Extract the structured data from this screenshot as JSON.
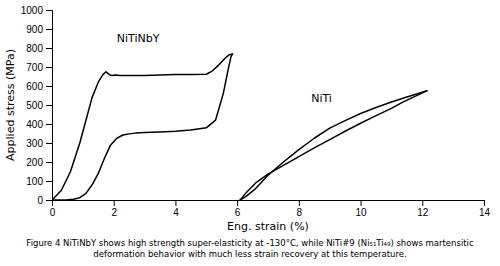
{
  "chart_data": {
    "type": "line",
    "xlabel": "Eng. strain (%)",
    "ylabel": "Applied stress (MPa)",
    "xlim": [
      0,
      14
    ],
    "ylim": [
      0,
      1000
    ],
    "xticks": [
      0,
      2,
      4,
      6,
      8,
      10,
      12,
      14
    ],
    "yticks": [
      0,
      100,
      200,
      300,
      400,
      500,
      600,
      700,
      800,
      900,
      1000
    ],
    "series": [
      {
        "color": "#000000",
        "x": [
          0,
          0.3,
          0.6,
          0.9,
          1.1,
          1.3,
          1.5,
          1.65,
          1.75,
          1.82,
          1.88,
          1.95,
          2.05,
          2.2,
          2.5,
          3.0,
          3.5,
          4.0,
          4.5,
          5.0,
          5.2,
          5.4,
          5.6,
          5.75,
          5.85
        ],
        "values": [
          0,
          50,
          150,
          300,
          420,
          540,
          620,
          660,
          675,
          665,
          658,
          655,
          658,
          655,
          655,
          655,
          658,
          660,
          660,
          662,
          680,
          710,
          745,
          765,
          768
        ]
      },
      {
        "color": "#000000",
        "x": [
          5.85,
          5.8,
          5.7,
          5.55,
          5.3,
          5.0,
          4.5,
          4.0,
          3.5,
          3.0,
          2.7,
          2.5,
          2.3,
          2.1,
          1.9,
          1.7,
          1.5,
          1.3,
          1.1,
          0.9,
          0.7,
          0.5,
          0.3,
          0.15,
          0.05,
          0.0
        ],
        "values": [
          768,
          755,
          680,
          560,
          420,
          380,
          368,
          362,
          358,
          355,
          352,
          348,
          342,
          325,
          290,
          220,
          140,
          80,
          35,
          12,
          4,
          1,
          0,
          0,
          0,
          0
        ]
      },
      {
        "color": "#000000",
        "x": [
          6.1,
          6.3,
          6.6,
          7.0,
          7.5,
          8.0,
          8.5,
          9.0,
          9.5,
          10.0,
          10.5,
          11.0,
          11.5,
          11.9,
          12.15
        ],
        "values": [
          0,
          20,
          60,
          130,
          200,
          265,
          325,
          378,
          418,
          455,
          487,
          516,
          542,
          562,
          575
        ]
      },
      {
        "color": "#000000",
        "x": [
          12.15,
          12.05,
          11.8,
          11.4,
          11.0,
          10.5,
          10.0,
          9.5,
          9.0,
          8.5,
          8.0,
          7.5,
          7.0,
          6.6,
          6.3,
          6.1
        ],
        "values": [
          575,
          568,
          548,
          518,
          482,
          444,
          404,
          362,
          318,
          274,
          228,
          182,
          136,
          90,
          40,
          0
        ]
      }
    ],
    "annotations": [
      {
        "text": "NiTiNbY",
        "x": 2.1,
        "y": 850
      },
      {
        "text": "NiTi",
        "x": 8.4,
        "y": 530
      }
    ],
    "caption": [
      "Figure 4 NiTiNbY shows high strength super-elasticity at -130°C, while NiTi#9 (Ni₅₁Ti₄₉) shows martensitic",
      "deformation behavior with much less strain recovery at this temperature."
    ]
  }
}
